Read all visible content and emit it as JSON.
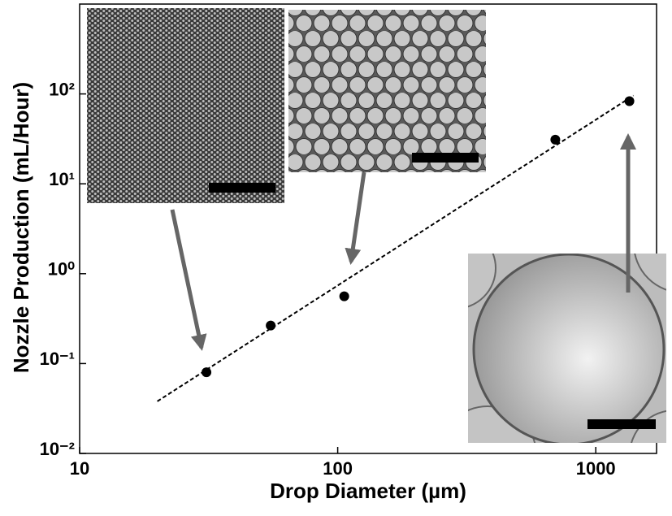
{
  "chart_data": {
    "type": "scatter",
    "x_label": "Drop Diameter (µm)",
    "y_label": "Nozzle Production (mL/Hour)",
    "x": [
      31,
      55,
      106,
      697,
      1350
    ],
    "y": [
      0.08,
      0.265,
      0.56,
      31,
      83
    ],
    "color": "#000000",
    "fit": {
      "x": [
        20,
        1400
      ],
      "y": [
        0.038,
        96
      ],
      "color": "#000000"
    },
    "xlim": [
      10,
      1720
    ],
    "ylim": [
      0.01,
      1000
    ],
    "xticks": [
      10,
      100,
      1000
    ],
    "yticks": [
      {
        "value": 0.01,
        "label": "10⁻²"
      },
      {
        "value": 0.1,
        "label": "10⁻¹"
      },
      {
        "value": 1,
        "label": "10⁰"
      },
      {
        "value": 10,
        "label": "10¹"
      },
      {
        "value": 100,
        "label": "10²"
      }
    ],
    "x_scale": "log",
    "y_scale": "log"
  }
}
